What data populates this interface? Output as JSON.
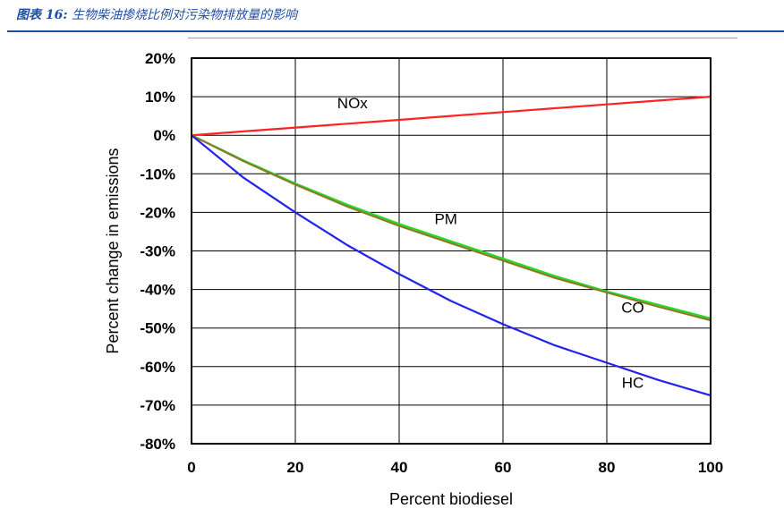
{
  "header": {
    "figure_number": "图表 16:",
    "title": "生物柴油掺烧比例对污染物排放量的影响"
  },
  "chart_data": {
    "type": "line",
    "title": "",
    "xlabel": "Percent biodiesel",
    "ylabel": "Percent change in emissions",
    "xlim": [
      0,
      100
    ],
    "ylim": [
      -80,
      20
    ],
    "x_ticks": [
      0,
      20,
      40,
      60,
      80,
      100
    ],
    "x_tick_labels": [
      "0",
      "20",
      "40",
      "60",
      "80",
      "100"
    ],
    "y_ticks": [
      20,
      10,
      0,
      -10,
      -20,
      -30,
      -40,
      -50,
      -60,
      -70,
      -80
    ],
    "y_tick_labels": [
      "20%",
      "10%",
      "0%",
      "-10%",
      "-20%",
      "-30%",
      "-40%",
      "-50%",
      "-60%",
      "-70%",
      "-80%"
    ],
    "grid": true,
    "legend": "none",
    "series": [
      {
        "name": "NOx",
        "color": "#ff2222",
        "x": [
          0,
          10,
          20,
          30,
          40,
          50,
          60,
          70,
          80,
          90,
          100
        ],
        "y": [
          0,
          1,
          2,
          3,
          4,
          5,
          6,
          7,
          8,
          9,
          10
        ]
      },
      {
        "name": "PM",
        "color": "#22dd22",
        "x": [
          0,
          10,
          20,
          30,
          40,
          50,
          60,
          70,
          80,
          90,
          100
        ],
        "y": [
          0,
          -6.5,
          -12.5,
          -18,
          -23,
          -27.5,
          -32,
          -36.5,
          -40.5,
          -44,
          -47.5
        ]
      },
      {
        "name": "CO",
        "color": "#8a7a2a",
        "x": [
          0,
          10,
          20,
          30,
          40,
          50,
          60,
          70,
          80,
          90,
          100
        ],
        "y": [
          0,
          -6.7,
          -12.8,
          -18.5,
          -23.5,
          -28,
          -32.5,
          -37,
          -40.8,
          -44.5,
          -48
        ]
      },
      {
        "name": "HC",
        "color": "#2222ee",
        "x": [
          0,
          10,
          20,
          30,
          40,
          50,
          60,
          70,
          80,
          90,
          100
        ],
        "y": [
          0,
          -11,
          -20,
          -28.5,
          -36,
          -43,
          -49,
          -54.5,
          -59,
          -63.5,
          -67.5
        ]
      }
    ]
  }
}
